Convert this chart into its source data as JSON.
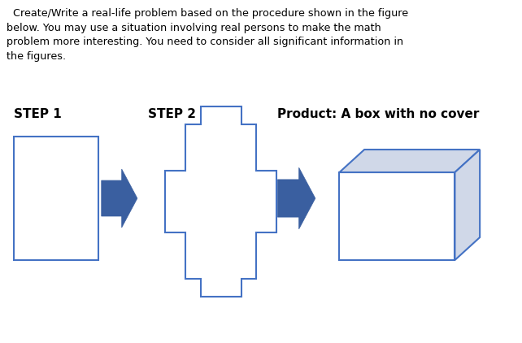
{
  "bg_color": "#ffffff",
  "text_color": "#000000",
  "paragraph": "  Create/Write a real-life problem based on the procedure shown in the figure\nbelow. You may use a situation involving real persons to make the math\nproblem more interesting. You need to consider all significant information in\nthe figures.",
  "label1": "STEP 1",
  "label2": "STEP 2",
  "label3": "Product: A box with no cover",
  "arrow_color": "#3A5FA0",
  "rect_edge_color": "#4472C4",
  "box_face_color": "#D0D8E8",
  "box_edge_color": "#4472C4"
}
